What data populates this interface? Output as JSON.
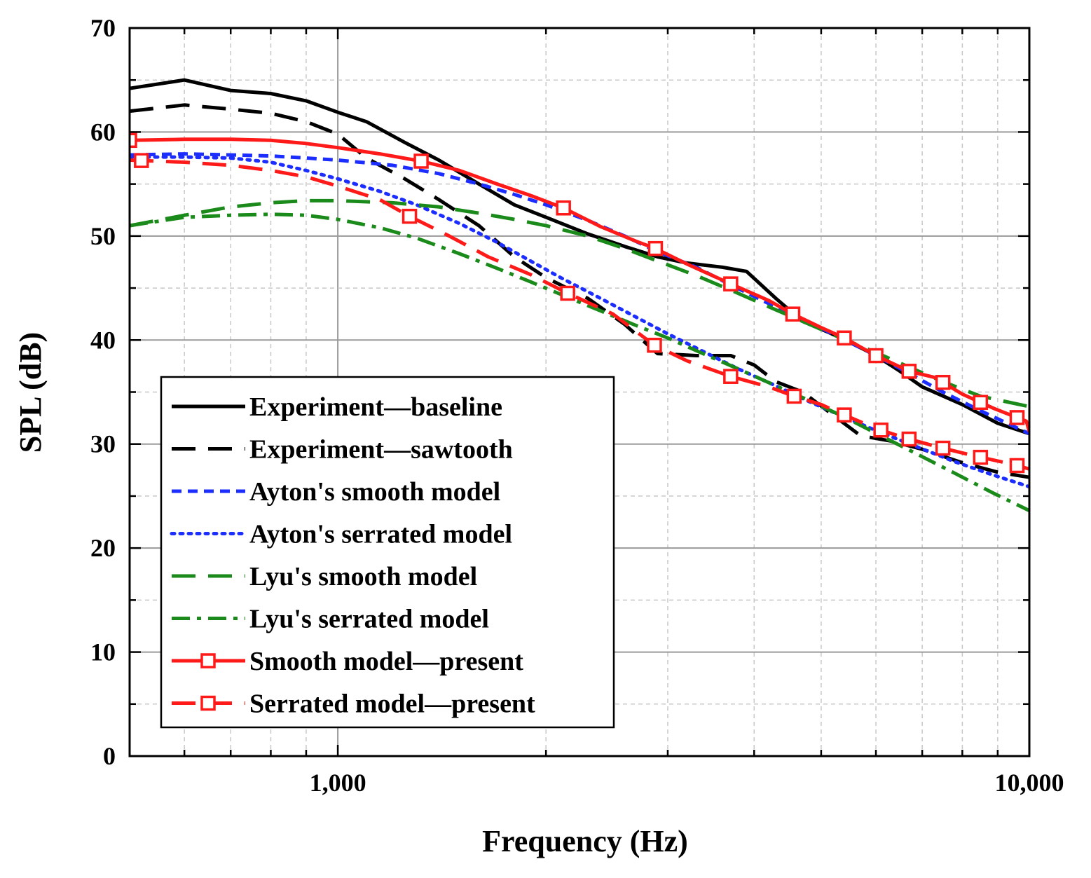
{
  "chart_data": {
    "type": "line",
    "title": "",
    "xlabel": "Frequency (Hz)",
    "ylabel": "SPL (dB)",
    "xscale": "log",
    "xlim": [
      500,
      10000
    ],
    "ylim": [
      0,
      70
    ],
    "x_ticks": [
      {
        "value": 1000,
        "label": "1,000"
      },
      {
        "value": 10000,
        "label": "10,000"
      }
    ],
    "y_ticks": [
      {
        "value": 0,
        "label": "0"
      },
      {
        "value": 10,
        "label": "10"
      },
      {
        "value": 20,
        "label": "20"
      },
      {
        "value": 30,
        "label": "30"
      },
      {
        "value": 40,
        "label": "40"
      },
      {
        "value": 50,
        "label": "50"
      },
      {
        "value": 60,
        "label": "60"
      },
      {
        "value": 70,
        "label": "70"
      }
    ],
    "grid": true,
    "legend_position": "bottom-left",
    "series": [
      {
        "name": "Experiment—baseline",
        "color": "#000000",
        "dash": "solid",
        "marker": "none",
        "points": [
          [
            500,
            64.2
          ],
          [
            600,
            65.0
          ],
          [
            700,
            64.0
          ],
          [
            800,
            63.7
          ],
          [
            900,
            63.0
          ],
          [
            1000,
            61.9
          ],
          [
            1100,
            61.0
          ],
          [
            1250,
            59.0
          ],
          [
            1400,
            57.3
          ],
          [
            1600,
            55.0
          ],
          [
            1800,
            53.0
          ],
          [
            2000,
            51.8
          ],
          [
            2300,
            50.2
          ],
          [
            2600,
            49.0
          ],
          [
            2900,
            48.0
          ],
          [
            3200,
            47.4
          ],
          [
            3600,
            47.0
          ],
          [
            3900,
            46.6
          ],
          [
            4300,
            44.0
          ],
          [
            4700,
            41.8
          ],
          [
            5100,
            40.8
          ],
          [
            5500,
            39.8
          ],
          [
            6000,
            38.5
          ],
          [
            6500,
            37.0
          ],
          [
            7000,
            35.5
          ],
          [
            8000,
            33.8
          ],
          [
            9000,
            32.0
          ],
          [
            10000,
            31.0
          ]
        ]
      },
      {
        "name": "Experiment—sawtooth",
        "color": "#000000",
        "dash": "dashed",
        "marker": "none",
        "points": [
          [
            500,
            62.0
          ],
          [
            600,
            62.6
          ],
          [
            700,
            62.2
          ],
          [
            800,
            61.8
          ],
          [
            900,
            61.0
          ],
          [
            1000,
            59.8
          ],
          [
            1100,
            57.5
          ],
          [
            1250,
            55.5
          ],
          [
            1400,
            53.5
          ],
          [
            1600,
            51.0
          ],
          [
            1800,
            48.0
          ],
          [
            2000,
            46.0
          ],
          [
            2300,
            44.0
          ],
          [
            2600,
            41.5
          ],
          [
            2900,
            38.7
          ],
          [
            3300,
            38.5
          ],
          [
            3700,
            38.5
          ],
          [
            4000,
            37.6
          ],
          [
            4300,
            36.0
          ],
          [
            4700,
            35.0
          ],
          [
            5200,
            32.8
          ],
          [
            5700,
            30.8
          ],
          [
            6300,
            30.3
          ],
          [
            7000,
            29.5
          ],
          [
            8000,
            28.2
          ],
          [
            9000,
            27.3
          ],
          [
            10000,
            26.8
          ]
        ]
      },
      {
        "name": "Ayton's smooth model",
        "color": "#1c2dff",
        "dash": "shortdash",
        "marker": "none",
        "points": [
          [
            500,
            57.8
          ],
          [
            600,
            57.9
          ],
          [
            700,
            57.8
          ],
          [
            800,
            57.7
          ],
          [
            900,
            57.5
          ],
          [
            1000,
            57.3
          ],
          [
            1200,
            56.8
          ],
          [
            1400,
            56.0
          ],
          [
            1600,
            55.0
          ],
          [
            1800,
            54.0
          ],
          [
            2000,
            53.0
          ],
          [
            2300,
            51.5
          ],
          [
            2600,
            50.0
          ],
          [
            2900,
            48.5
          ],
          [
            3300,
            47.0
          ],
          [
            3700,
            45.3
          ],
          [
            4200,
            43.5
          ],
          [
            4700,
            42.0
          ],
          [
            5300,
            40.3
          ],
          [
            6000,
            38.5
          ],
          [
            6700,
            36.8
          ],
          [
            7500,
            35.0
          ],
          [
            8500,
            33.2
          ],
          [
            10000,
            31.0
          ]
        ]
      },
      {
        "name": "Ayton's serrated model",
        "color": "#1c2dff",
        "dash": "dotted",
        "marker": "none",
        "points": [
          [
            500,
            57.6
          ],
          [
            600,
            57.6
          ],
          [
            700,
            57.5
          ],
          [
            800,
            57.1
          ],
          [
            900,
            56.3
          ],
          [
            1000,
            55.5
          ],
          [
            1150,
            54.3
          ],
          [
            1300,
            53.0
          ],
          [
            1500,
            51.2
          ],
          [
            1700,
            49.4
          ],
          [
            1900,
            47.6
          ],
          [
            2100,
            46.0
          ],
          [
            2400,
            44.0
          ],
          [
            2700,
            42.2
          ],
          [
            3000,
            40.6
          ],
          [
            3400,
            38.8
          ],
          [
            3800,
            37.2
          ],
          [
            4300,
            35.6
          ],
          [
            4800,
            34.1
          ],
          [
            5400,
            32.6
          ],
          [
            6100,
            31.1
          ],
          [
            6900,
            29.7
          ],
          [
            7800,
            28.3
          ],
          [
            8800,
            27.1
          ],
          [
            10000,
            25.9
          ]
        ]
      },
      {
        "name": "Lyu's smooth model",
        "color": "#1a8a1a",
        "dash": "dashed",
        "marker": "none",
        "points": [
          [
            500,
            51.0
          ],
          [
            600,
            52.0
          ],
          [
            700,
            52.8
          ],
          [
            800,
            53.2
          ],
          [
            900,
            53.4
          ],
          [
            1000,
            53.4
          ],
          [
            1200,
            53.2
          ],
          [
            1400,
            52.8
          ],
          [
            1600,
            52.2
          ],
          [
            1800,
            51.6
          ],
          [
            2000,
            51.0
          ],
          [
            2300,
            50.0
          ],
          [
            2600,
            48.8
          ],
          [
            2900,
            47.6
          ],
          [
            3300,
            46.2
          ],
          [
            3700,
            44.8
          ],
          [
            4200,
            43.2
          ],
          [
            4700,
            41.8
          ],
          [
            5300,
            40.3
          ],
          [
            6000,
            38.8
          ],
          [
            6700,
            37.4
          ],
          [
            7500,
            36.0
          ],
          [
            8500,
            34.6
          ],
          [
            10000,
            33.6
          ]
        ]
      },
      {
        "name": "Lyu's serrated model",
        "color": "#1a8a1a",
        "dash": "dashdot",
        "marker": "none",
        "points": [
          [
            500,
            51.0
          ],
          [
            600,
            51.8
          ],
          [
            700,
            52.0
          ],
          [
            800,
            52.1
          ],
          [
            900,
            52.0
          ],
          [
            1000,
            51.6
          ],
          [
            1150,
            50.8
          ],
          [
            1300,
            49.8
          ],
          [
            1500,
            48.3
          ],
          [
            1700,
            46.9
          ],
          [
            1900,
            45.6
          ],
          [
            2100,
            44.4
          ],
          [
            2400,
            42.8
          ],
          [
            2700,
            41.4
          ],
          [
            3000,
            40.2
          ],
          [
            3400,
            38.6
          ],
          [
            3800,
            37.2
          ],
          [
            4300,
            35.6
          ],
          [
            4800,
            34.2
          ],
          [
            5400,
            32.6
          ],
          [
            6100,
            30.8
          ],
          [
            6900,
            29.0
          ],
          [
            7800,
            27.2
          ],
          [
            8800,
            25.4
          ],
          [
            10000,
            23.6
          ]
        ]
      },
      {
        "name": "Smooth model—present",
        "color": "#ff1a1a",
        "dash": "solid",
        "marker": "square",
        "points": [
          [
            500,
            59.2
          ],
          [
            600,
            59.3
          ],
          [
            700,
            59.3
          ],
          [
            800,
            59.2
          ],
          [
            900,
            58.9
          ],
          [
            1000,
            58.5
          ],
          [
            1150,
            57.9
          ],
          [
            1320,
            57.2
          ],
          [
            1500,
            56.3
          ],
          [
            1700,
            55.0
          ],
          [
            1900,
            53.9
          ],
          [
            2120,
            52.7
          ],
          [
            2400,
            50.9
          ],
          [
            2700,
            49.5
          ],
          [
            2880,
            48.8
          ],
          [
            3200,
            47.3
          ],
          [
            3700,
            45.4
          ],
          [
            4200,
            43.8
          ],
          [
            4550,
            42.5
          ],
          [
            5000,
            41.2
          ],
          [
            5400,
            40.2
          ],
          [
            6000,
            38.5
          ],
          [
            6700,
            37.0
          ],
          [
            7300,
            36.4
          ],
          [
            8000,
            34.8
          ],
          [
            8900,
            33.4
          ],
          [
            9900,
            32.2
          ],
          [
            10000,
            31.2
          ]
        ]
      },
      {
        "name": "Serrated model—present",
        "color": "#ff1a1a",
        "dash": "dashed",
        "marker": "square",
        "points": [
          [
            500,
            57.3
          ],
          [
            600,
            57.1
          ],
          [
            700,
            56.8
          ],
          [
            800,
            56.3
          ],
          [
            900,
            55.7
          ],
          [
            1000,
            54.8
          ],
          [
            1150,
            53.5
          ],
          [
            1270,
            51.9
          ],
          [
            1450,
            50.0
          ],
          [
            1650,
            48.0
          ],
          [
            1900,
            46.3
          ],
          [
            2150,
            44.5
          ],
          [
            2500,
            42.5
          ],
          [
            2870,
            39.5
          ],
          [
            3200,
            38.0
          ],
          [
            3700,
            36.5
          ],
          [
            4200,
            35.5
          ],
          [
            4570,
            34.6
          ],
          [
            5000,
            33.8
          ],
          [
            5400,
            32.8
          ],
          [
            6000,
            31.5
          ],
          [
            6600,
            30.6
          ],
          [
            7400,
            29.7
          ],
          [
            8400,
            28.8
          ],
          [
            9400,
            28.1
          ],
          [
            10000,
            27.6
          ]
        ]
      }
    ]
  }
}
